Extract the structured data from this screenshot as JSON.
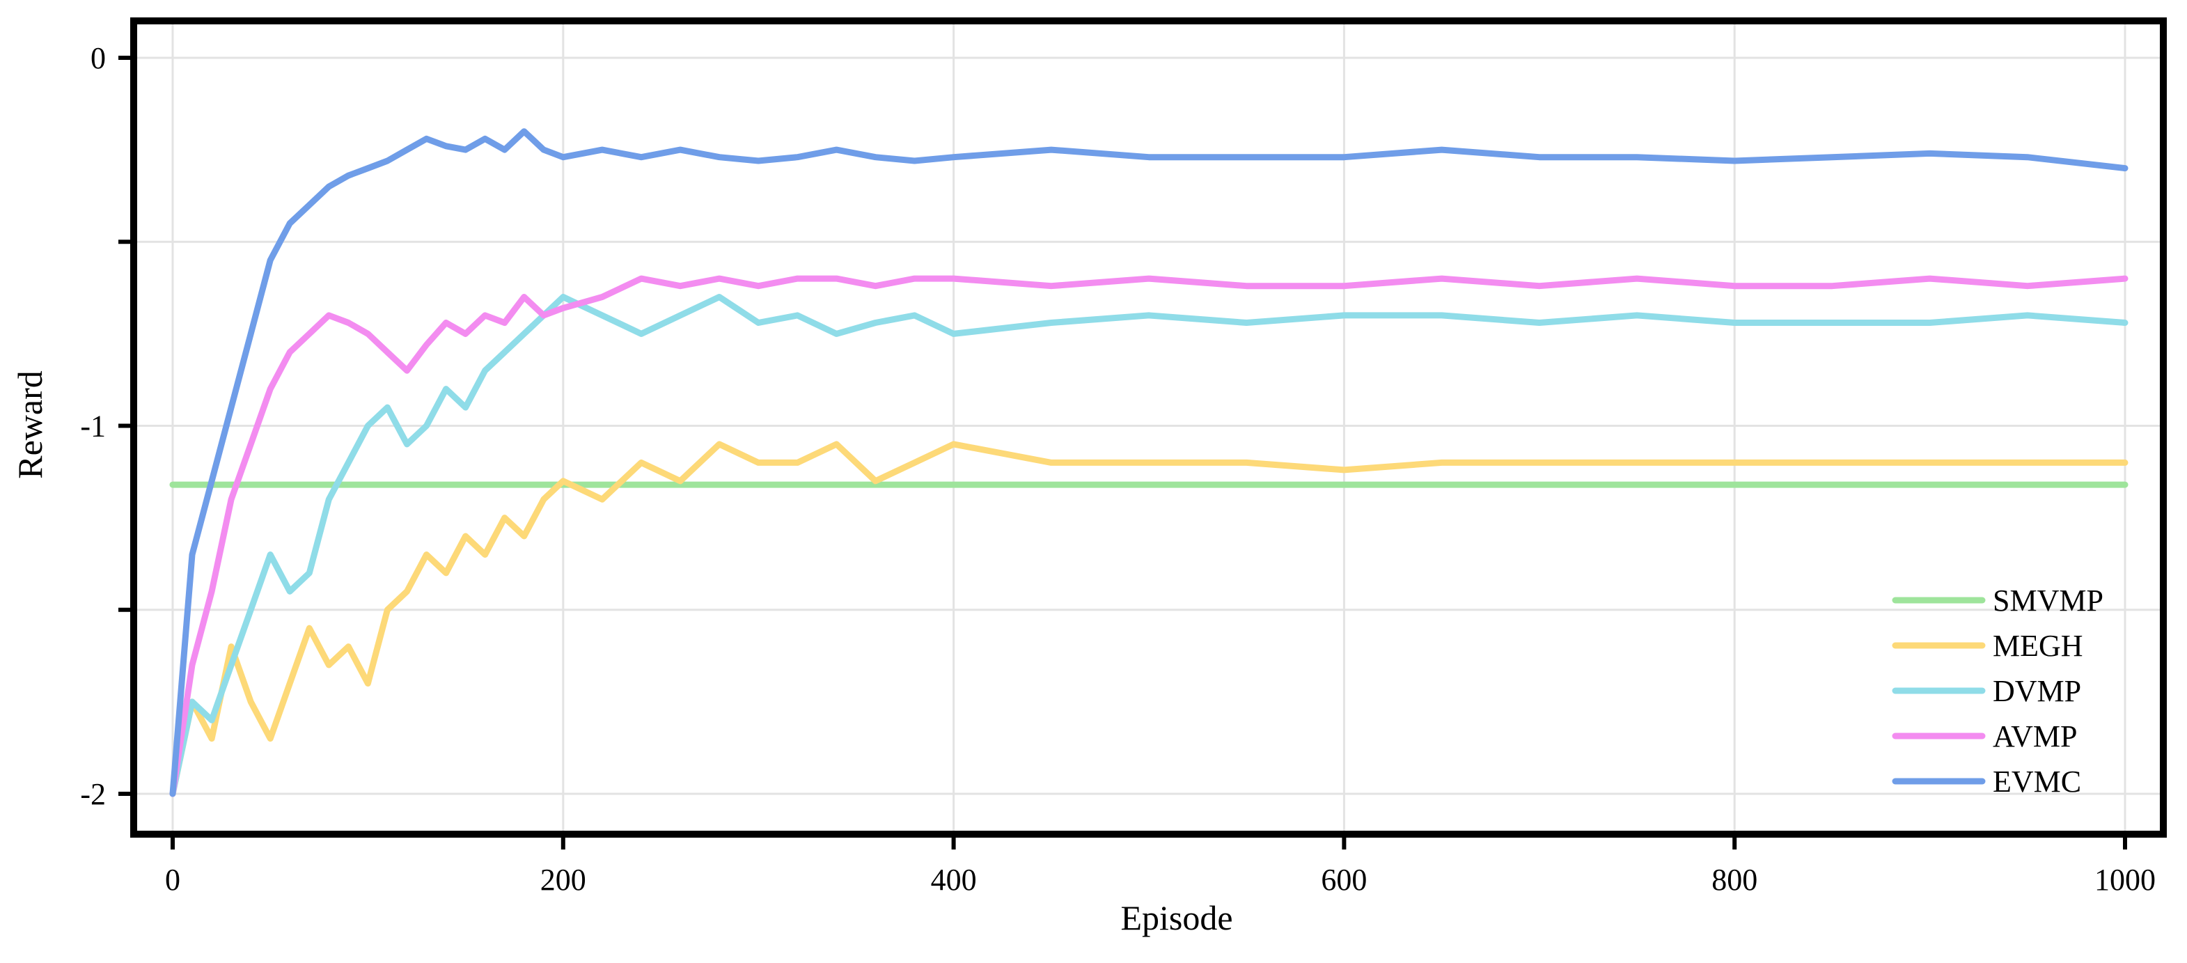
{
  "chart_data": {
    "type": "line",
    "title": "",
    "xlabel": "Episode",
    "ylabel": "Reward",
    "xlim": [
      0,
      1000
    ],
    "ylim": [
      -2,
      0
    ],
    "x_ticks": [
      0,
      200,
      400,
      600,
      800,
      1000
    ],
    "x_tick_labels": [
      "0",
      "200",
      "400",
      "600",
      "800",
      "1000"
    ],
    "y_ticks": [
      -2,
      -1.5,
      -1,
      -0.5,
      0
    ],
    "y_tick_labels": [
      "-2",
      "",
      "-1",
      "",
      "0"
    ],
    "grid": true,
    "legend_position": "bottom-right",
    "series": [
      {
        "name": "SMVMP",
        "color": "#9ee49b",
        "x": [
          0,
          1000
        ],
        "values": [
          -1.16,
          -1.16
        ]
      },
      {
        "name": "MEGH",
        "color": "#fdd978",
        "x": [
          0,
          10,
          20,
          30,
          40,
          50,
          60,
          70,
          80,
          90,
          100,
          110,
          120,
          130,
          140,
          150,
          160,
          170,
          180,
          190,
          200,
          220,
          240,
          260,
          280,
          300,
          320,
          340,
          360,
          380,
          400,
          450,
          500,
          550,
          600,
          650,
          700,
          750,
          800,
          850,
          900,
          950,
          1000
        ],
        "values": [
          -2.0,
          -1.75,
          -1.85,
          -1.6,
          -1.75,
          -1.85,
          -1.7,
          -1.55,
          -1.65,
          -1.6,
          -1.7,
          -1.5,
          -1.45,
          -1.35,
          -1.4,
          -1.3,
          -1.35,
          -1.25,
          -1.3,
          -1.2,
          -1.15,
          -1.2,
          -1.1,
          -1.15,
          -1.05,
          -1.1,
          -1.1,
          -1.05,
          -1.15,
          -1.1,
          -1.05,
          -1.1,
          -1.1,
          -1.1,
          -1.12,
          -1.1,
          -1.1,
          -1.1,
          -1.1,
          -1.1,
          -1.1,
          -1.1,
          -1.1
        ]
      },
      {
        "name": "DVMP",
        "color": "#8fdce8",
        "x": [
          0,
          10,
          20,
          30,
          40,
          50,
          60,
          70,
          80,
          90,
          100,
          110,
          120,
          130,
          140,
          150,
          160,
          170,
          180,
          190,
          200,
          220,
          240,
          260,
          280,
          300,
          320,
          340,
          360,
          380,
          400,
          450,
          500,
          550,
          600,
          650,
          700,
          750,
          800,
          850,
          900,
          950,
          1000
        ],
        "values": [
          -2.0,
          -1.75,
          -1.8,
          -1.65,
          -1.5,
          -1.35,
          -1.45,
          -1.4,
          -1.2,
          -1.1,
          -1.0,
          -0.95,
          -1.05,
          -1.0,
          -0.9,
          -0.95,
          -0.85,
          -0.8,
          -0.75,
          -0.7,
          -0.65,
          -0.7,
          -0.75,
          -0.7,
          -0.65,
          -0.72,
          -0.7,
          -0.75,
          -0.72,
          -0.7,
          -0.75,
          -0.72,
          -0.7,
          -0.72,
          -0.7,
          -0.7,
          -0.72,
          -0.7,
          -0.72,
          -0.72,
          -0.72,
          -0.7,
          -0.72
        ]
      },
      {
        "name": "AVMP",
        "color": "#f38cf0",
        "x": [
          0,
          10,
          20,
          30,
          40,
          50,
          60,
          70,
          80,
          90,
          100,
          110,
          120,
          130,
          140,
          150,
          160,
          170,
          180,
          190,
          200,
          220,
          240,
          260,
          280,
          300,
          320,
          340,
          360,
          380,
          400,
          450,
          500,
          550,
          600,
          650,
          700,
          750,
          800,
          850,
          900,
          950,
          1000
        ],
        "values": [
          -2.0,
          -1.65,
          -1.45,
          -1.2,
          -1.05,
          -0.9,
          -0.8,
          -0.75,
          -0.7,
          -0.72,
          -0.75,
          -0.8,
          -0.85,
          -0.78,
          -0.72,
          -0.75,
          -0.7,
          -0.72,
          -0.65,
          -0.7,
          -0.68,
          -0.65,
          -0.6,
          -0.62,
          -0.6,
          -0.62,
          -0.6,
          -0.6,
          -0.62,
          -0.6,
          -0.6,
          -0.62,
          -0.6,
          -0.62,
          -0.62,
          -0.6,
          -0.62,
          -0.6,
          -0.62,
          -0.62,
          -0.6,
          -0.62,
          -0.6
        ]
      },
      {
        "name": "EVMC",
        "color": "#6f9de8",
        "x": [
          0,
          10,
          20,
          30,
          40,
          50,
          60,
          70,
          80,
          90,
          100,
          110,
          120,
          130,
          140,
          150,
          160,
          170,
          180,
          190,
          200,
          220,
          240,
          260,
          280,
          300,
          320,
          340,
          360,
          380,
          400,
          450,
          500,
          550,
          600,
          650,
          700,
          750,
          800,
          850,
          900,
          950,
          1000
        ],
        "values": [
          -2.0,
          -1.35,
          -1.15,
          -0.95,
          -0.75,
          -0.55,
          -0.45,
          -0.4,
          -0.35,
          -0.32,
          -0.3,
          -0.28,
          -0.25,
          -0.22,
          -0.24,
          -0.25,
          -0.22,
          -0.25,
          -0.2,
          -0.25,
          -0.27,
          -0.25,
          -0.27,
          -0.25,
          -0.27,
          -0.28,
          -0.27,
          -0.25,
          -0.27,
          -0.28,
          -0.27,
          -0.25,
          -0.27,
          -0.27,
          -0.27,
          -0.25,
          -0.27,
          -0.27,
          -0.28,
          -0.27,
          -0.26,
          -0.27,
          -0.3
        ]
      }
    ]
  }
}
